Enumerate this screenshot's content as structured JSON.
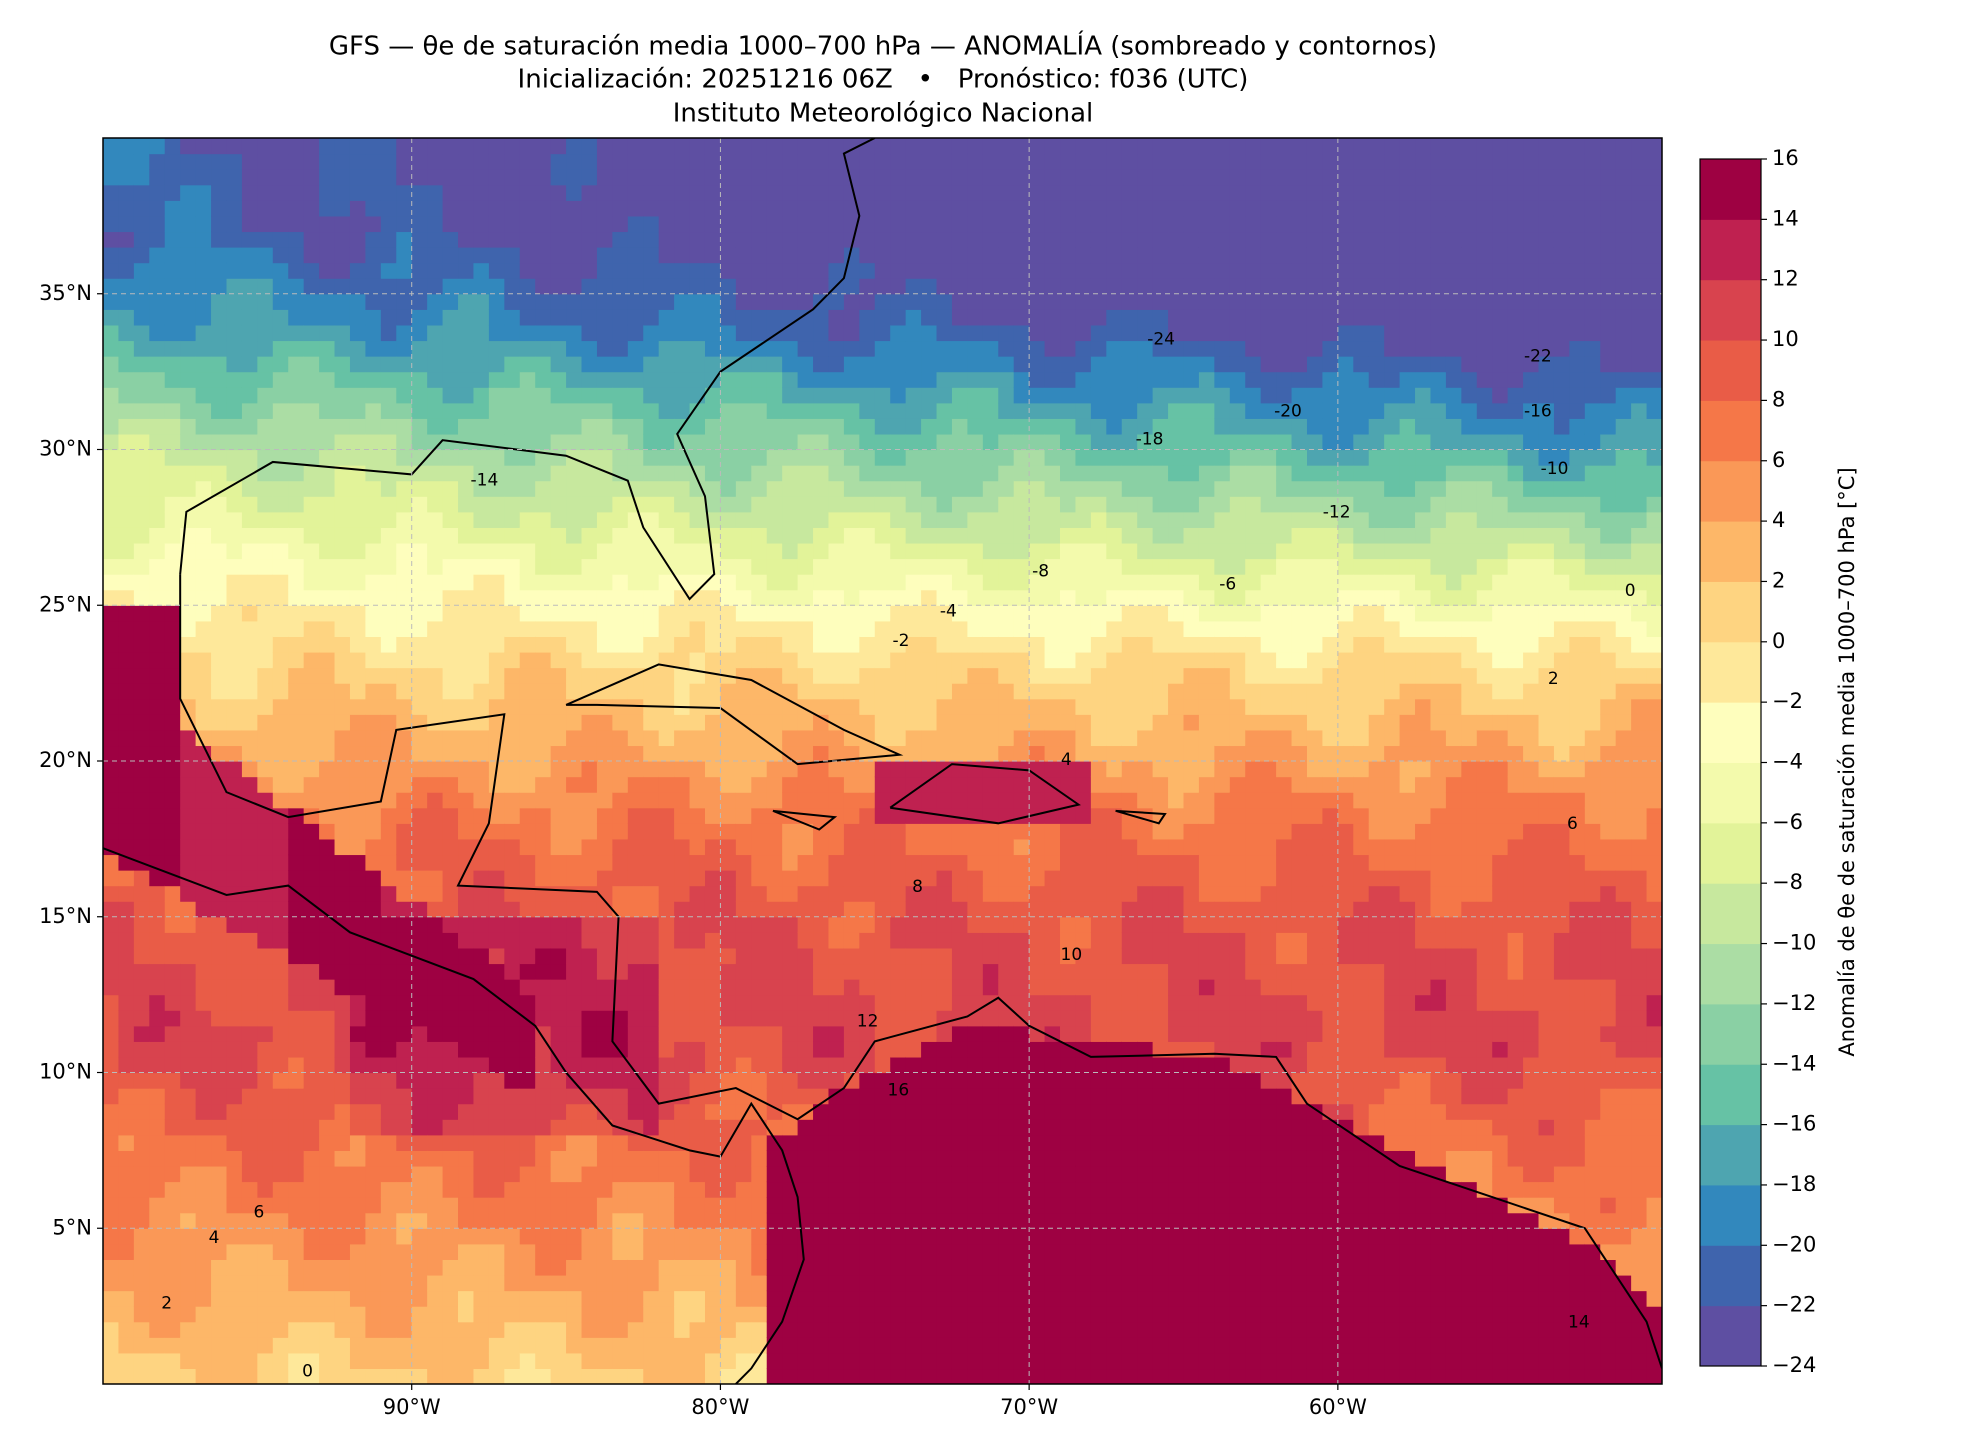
{
  "chart_data": {
    "type": "filled-contour",
    "title": "GFS — θe de saturación media 1000–700 hPa — ANOMALÍA (sombreado y contornos)",
    "subtitle": "Inicialización: 20251216 06Z   •   Pronóstico: f036 (UTC)",
    "source": "Instituto Meteorológico Nacional",
    "xlim": [
      -100,
      -49.5
    ],
    "ylim": [
      0,
      40
    ],
    "xticks": [
      {
        "value": -90,
        "label": "90°W"
      },
      {
        "value": -80,
        "label": "80°W"
      },
      {
        "value": -70,
        "label": "70°W"
      },
      {
        "value": -60,
        "label": "60°W"
      }
    ],
    "yticks": [
      {
        "value": 5,
        "label": "5°N"
      },
      {
        "value": 10,
        "label": "10°N"
      },
      {
        "value": 15,
        "label": "15°N"
      },
      {
        "value": 20,
        "label": "20°N"
      },
      {
        "value": 25,
        "label": "25°N"
      },
      {
        "value": 30,
        "label": "30°N"
      },
      {
        "value": 35,
        "label": "35°N"
      }
    ],
    "grid": true,
    "colorbar": {
      "label": "Anomalía de θe de saturación media 1000–700 hPa [°C]",
      "ticks": [
        {
          "value": -24,
          "label": "−24"
        },
        {
          "value": -22,
          "label": "−22"
        },
        {
          "value": -20,
          "label": "−20"
        },
        {
          "value": -18,
          "label": "−18"
        },
        {
          "value": -16,
          "label": "−16"
        },
        {
          "value": -14,
          "label": "−14"
        },
        {
          "value": -12,
          "label": "−12"
        },
        {
          "value": -10,
          "label": "−10"
        },
        {
          "value": -8,
          "label": "−8"
        },
        {
          "value": -6,
          "label": "−6"
        },
        {
          "value": -4,
          "label": "−4"
        },
        {
          "value": -2,
          "label": "−2"
        },
        0,
        2,
        4,
        6,
        8,
        10,
        12,
        14,
        16
      ],
      "colors": [
        "#5e4fa2",
        "#3f64ad",
        "#3288bd",
        "#4ea5b0",
        "#66c2a5",
        "#8ad0a4",
        "#abdda4",
        "#c7e89e",
        "#e2f399",
        "#f3faac",
        "#fefebd",
        "#fee89a",
        "#fed481",
        "#fdb768",
        "#fa9857",
        "#f57748",
        "#e95c47",
        "#d8434e",
        "#bf2150",
        "#9e0142"
      ]
    },
    "contour_labels": [
      -24,
      -22,
      -20,
      -18,
      -16,
      -14,
      -12,
      -10,
      -8,
      -6,
      -4,
      -2,
      0,
      2,
      4,
      6,
      8,
      10,
      12,
      16,
      6,
      4,
      2,
      0,
      14
    ]
  }
}
